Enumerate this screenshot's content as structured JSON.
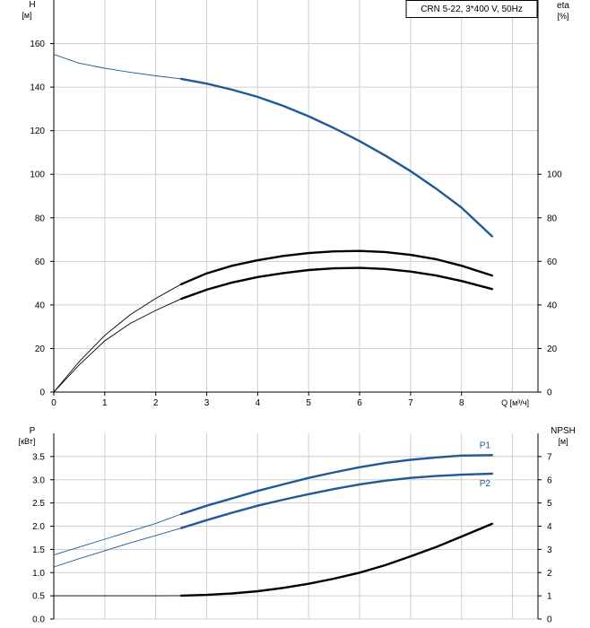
{
  "colors": {
    "blue": "#1f5a96",
    "black": "#000000",
    "grid": "#cfcfcf"
  },
  "chart_data": [
    {
      "type": "line",
      "legend": "CRN 5-22, 3*400 V, 50Hz",
      "y_label_left": "H",
      "y_unit_left": "[м]",
      "y_label_right": "eta",
      "y_unit_right": "[%]",
      "x_label": "Q [м³/ч]",
      "xlim": [
        0,
        9.5
      ],
      "ylim_left": [
        0,
        180
      ],
      "ylim_right": [
        0,
        180
      ],
      "x_ticks": [
        "0",
        "1",
        "2",
        "3",
        "4",
        "5",
        "6",
        "7",
        "8"
      ],
      "y_ticks_left": [
        "0",
        "20",
        "40",
        "60",
        "80",
        "100",
        "120",
        "140",
        "160"
      ],
      "y_ticks_right": [
        "0",
        "20",
        "40",
        "60",
        "80",
        "100"
      ],
      "series": [
        {
          "color": "#1f5a96",
          "axis": "left",
          "x": [
            0,
            0.5,
            1,
            1.5,
            2,
            2.5,
            3,
            3.5,
            4,
            4.5,
            5,
            5.5,
            6,
            6.5,
            7,
            7.5,
            8,
            8.6
          ],
          "y": [
            155,
            151,
            148.7,
            146.8,
            145.2,
            143.8,
            141.6,
            138.8,
            135.5,
            131.4,
            126.6,
            121.2,
            115.2,
            108.6,
            101.4,
            93.4,
            84.7,
            71.5
          ]
        },
        {
          "color": "#000000",
          "axis": "right",
          "x": [
            0,
            0.5,
            1,
            1.5,
            2,
            2.5,
            3,
            3.5,
            4,
            4.5,
            5,
            5.5,
            6,
            6.5,
            7,
            7.5,
            8,
            8.6
          ],
          "y": [
            0,
            14,
            26,
            35.5,
            43,
            49.5,
            54.5,
            58,
            60.5,
            62.5,
            63.8,
            64.6,
            64.8,
            64.3,
            63,
            61,
            58,
            53.5
          ]
        },
        {
          "color": "#000000",
          "axis": "right",
          "x": [
            0,
            0.5,
            1,
            1.5,
            2,
            2.5,
            3,
            3.5,
            4,
            4.5,
            5,
            5.5,
            6,
            6.5,
            7,
            7.5,
            8,
            8.6
          ],
          "y": [
            0,
            12.5,
            23.5,
            31.5,
            37.5,
            42.8,
            47,
            50.3,
            52.8,
            54.6,
            56,
            56.8,
            57,
            56.5,
            55.3,
            53.5,
            51,
            47.3
          ]
        }
      ]
    },
    {
      "type": "line",
      "y_label_left": "P",
      "y_unit_left": "[кВт]",
      "y_label_right": "NPSH",
      "y_unit_right": "[м]",
      "xlim": [
        0,
        9.5
      ],
      "ylim_left": [
        0,
        4
      ],
      "ylim_right": [
        0,
        8
      ],
      "y_ticks_left": [
        "0.0",
        "0.5",
        "1.0",
        "1.5",
        "2.0",
        "2.5",
        "3.0",
        "3.5"
      ],
      "y_ticks_right": [
        "0",
        "1",
        "2",
        "3",
        "4",
        "5",
        "6",
        "7"
      ],
      "series": [
        {
          "name": "P1",
          "color": "#1f5a96",
          "axis": "left",
          "x": [
            0,
            0.5,
            1,
            1.5,
            2,
            2.5,
            3,
            3.5,
            4,
            4.5,
            5,
            5.5,
            6,
            6.5,
            7,
            7.5,
            8,
            8.6
          ],
          "y": [
            1.38,
            1.55,
            1.72,
            1.89,
            2.06,
            2.26,
            2.44,
            2.6,
            2.76,
            2.9,
            3.04,
            3.16,
            3.27,
            3.36,
            3.43,
            3.48,
            3.52,
            3.53
          ]
        },
        {
          "name": "P2",
          "color": "#1f5a96",
          "axis": "left",
          "x": [
            0,
            0.5,
            1,
            1.5,
            2,
            2.5,
            3,
            3.5,
            4,
            4.5,
            5,
            5.5,
            6,
            6.5,
            7,
            7.5,
            8,
            8.6
          ],
          "y": [
            1.12,
            1.3,
            1.47,
            1.64,
            1.8,
            1.96,
            2.13,
            2.29,
            2.44,
            2.57,
            2.69,
            2.8,
            2.9,
            2.98,
            3.04,
            3.08,
            3.11,
            3.13
          ]
        },
        {
          "color": "#000000",
          "axis": "right",
          "x": [
            0,
            0.5,
            1,
            1.5,
            2,
            2.5,
            3,
            3.5,
            4,
            4.5,
            5,
            5.5,
            6,
            6.5,
            7,
            7.5,
            8,
            8.6
          ],
          "y": [
            1.0,
            1.0,
            1.0,
            1.0,
            1.0,
            1.01,
            1.04,
            1.1,
            1.2,
            1.34,
            1.52,
            1.74,
            2.0,
            2.32,
            2.7,
            3.1,
            3.55,
            4.1
          ]
        }
      ]
    }
  ]
}
